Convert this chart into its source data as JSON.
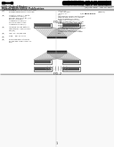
{
  "bg_color": "#ffffff",
  "barcode_color": "#000000",
  "text_color": "#333333",
  "line_color": "#aaaaaa",
  "plate_face": "#aaaaaa",
  "plate_inner": "#555555",
  "plate_edge": "#333333",
  "fig_bg": "#f5f5f5",
  "header_line_color": "#999999",
  "divider_color": "#aaaaaa"
}
